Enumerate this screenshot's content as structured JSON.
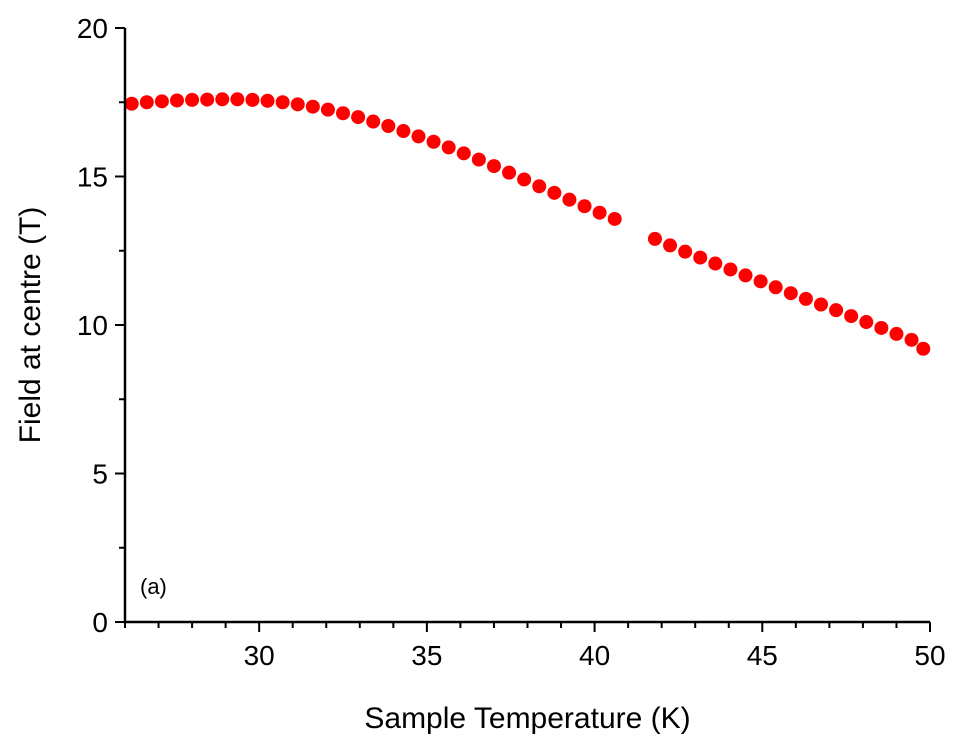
{
  "chart_data": {
    "type": "scatter",
    "title": "",
    "xlabel": "Sample Temperature (K)",
    "ylabel": "Field at centre (T)",
    "xlim": [
      26,
      50
    ],
    "ylim": [
      0,
      20
    ],
    "x_ticks": [
      30,
      35,
      40,
      45,
      50
    ],
    "x_tick_labels": [
      "30",
      "35",
      "40",
      "45",
      "50"
    ],
    "y_ticks": [
      0,
      5,
      10,
      15,
      20
    ],
    "y_tick_labels": [
      "0",
      "5",
      "10",
      "15",
      "20"
    ],
    "x_minor_step": 1,
    "y_minor_step": 2.5,
    "grid": false,
    "legend": "none",
    "annotation": "(a)",
    "marker_color": "#ff0000",
    "series": [
      {
        "x": [
          26.2,
          26.65,
          27.1,
          27.55,
          28.0,
          28.45,
          28.9,
          29.35,
          29.8,
          30.25,
          30.7,
          31.15,
          31.6,
          32.05,
          32.5,
          32.95,
          33.4,
          33.85,
          34.3,
          34.75,
          35.2,
          35.65,
          36.1,
          36.55,
          37.0,
          37.45,
          37.9,
          38.35,
          38.8,
          39.25,
          39.7,
          40.15,
          40.6,
          41.8,
          42.25,
          42.7,
          43.15,
          43.6,
          44.05,
          44.5,
          44.95,
          45.4,
          45.85,
          46.3,
          46.75,
          47.2,
          47.65,
          48.1,
          48.55,
          49.0,
          49.45,
          49.8
        ],
        "y": [
          17.45,
          17.5,
          17.53,
          17.56,
          17.58,
          17.59,
          17.6,
          17.6,
          17.58,
          17.55,
          17.5,
          17.43,
          17.35,
          17.25,
          17.13,
          17.0,
          16.85,
          16.7,
          16.53,
          16.35,
          16.17,
          15.98,
          15.78,
          15.57,
          15.35,
          15.13,
          14.9,
          14.67,
          14.45,
          14.22,
          14.0,
          13.78,
          13.57,
          12.9,
          12.68,
          12.47,
          12.27,
          12.07,
          11.87,
          11.67,
          11.47,
          11.27,
          11.07,
          10.88,
          10.69,
          10.5,
          10.3,
          10.1,
          9.9,
          9.7,
          9.5,
          9.2
        ]
      }
    ]
  }
}
